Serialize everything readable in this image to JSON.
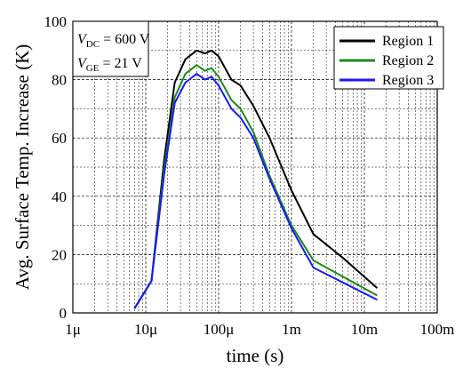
{
  "chart_data": {
    "type": "line",
    "xlabel": "time (s)",
    "ylabel": "Avg. Surface Temp. Increase (K)",
    "x_scale": "log",
    "xlim": [
      1e-06,
      0.1
    ],
    "ylim": [
      0,
      100
    ],
    "x_ticks": [
      {
        "value": 1e-06,
        "label": "1μ"
      },
      {
        "value": 1e-05,
        "label": "10μ"
      },
      {
        "value": 0.0001,
        "label": "100μ"
      },
      {
        "value": 0.001,
        "label": "1m"
      },
      {
        "value": 0.01,
        "label": "10m"
      },
      {
        "value": 0.1,
        "label": "100m"
      }
    ],
    "y_ticks": [
      0,
      20,
      40,
      60,
      80,
      100
    ],
    "grid": true,
    "legend_position": "top-right",
    "annotation": [
      {
        "var": "V",
        "sub": "DC",
        "text": " = 600 V"
      },
      {
        "var": "V",
        "sub": "GE",
        "text": " = 21 V"
      }
    ],
    "series": [
      {
        "name": "Region 1",
        "color": "#000000",
        "x": [
          7e-06,
          1.2e-05,
          1.8e-05,
          2.5e-05,
          3.5e-05,
          5e-05,
          6.5e-05,
          8e-05,
          0.0001,
          0.00015,
          0.0002,
          0.0003,
          0.0005,
          0.001,
          0.002,
          0.005,
          0.015
        ],
        "y": [
          1.5,
          11,
          53,
          79,
          87,
          90,
          89,
          90,
          88,
          80,
          78,
          71,
          60,
          42,
          27,
          19,
          8.5
        ]
      },
      {
        "name": "Region 2",
        "color": "#1a8a1a",
        "x": [
          7e-06,
          1.2e-05,
          1.8e-05,
          2.5e-05,
          3.5e-05,
          5e-05,
          6.5e-05,
          8e-05,
          0.0001,
          0.00015,
          0.0002,
          0.0003,
          0.0005,
          0.001,
          0.002,
          0.005,
          0.015
        ],
        "y": [
          1.5,
          11,
          50,
          74,
          82,
          85,
          83,
          84,
          81,
          73,
          70,
          62,
          47,
          30,
          18,
          12.5,
          6
        ]
      },
      {
        "name": "Region 3",
        "color": "#1a1aff",
        "x": [
          7e-06,
          1.2e-05,
          1.8e-05,
          2.5e-05,
          3.5e-05,
          5e-05,
          6.5e-05,
          8e-05,
          0.0001,
          0.00015,
          0.0002,
          0.0003,
          0.0005,
          0.001,
          0.002,
          0.005,
          0.015
        ],
        "y": [
          1.5,
          11,
          48,
          72,
          79,
          82,
          80,
          81,
          78,
          70,
          67,
          60,
          46,
          29,
          15.5,
          10.5,
          4.5
        ]
      }
    ]
  }
}
